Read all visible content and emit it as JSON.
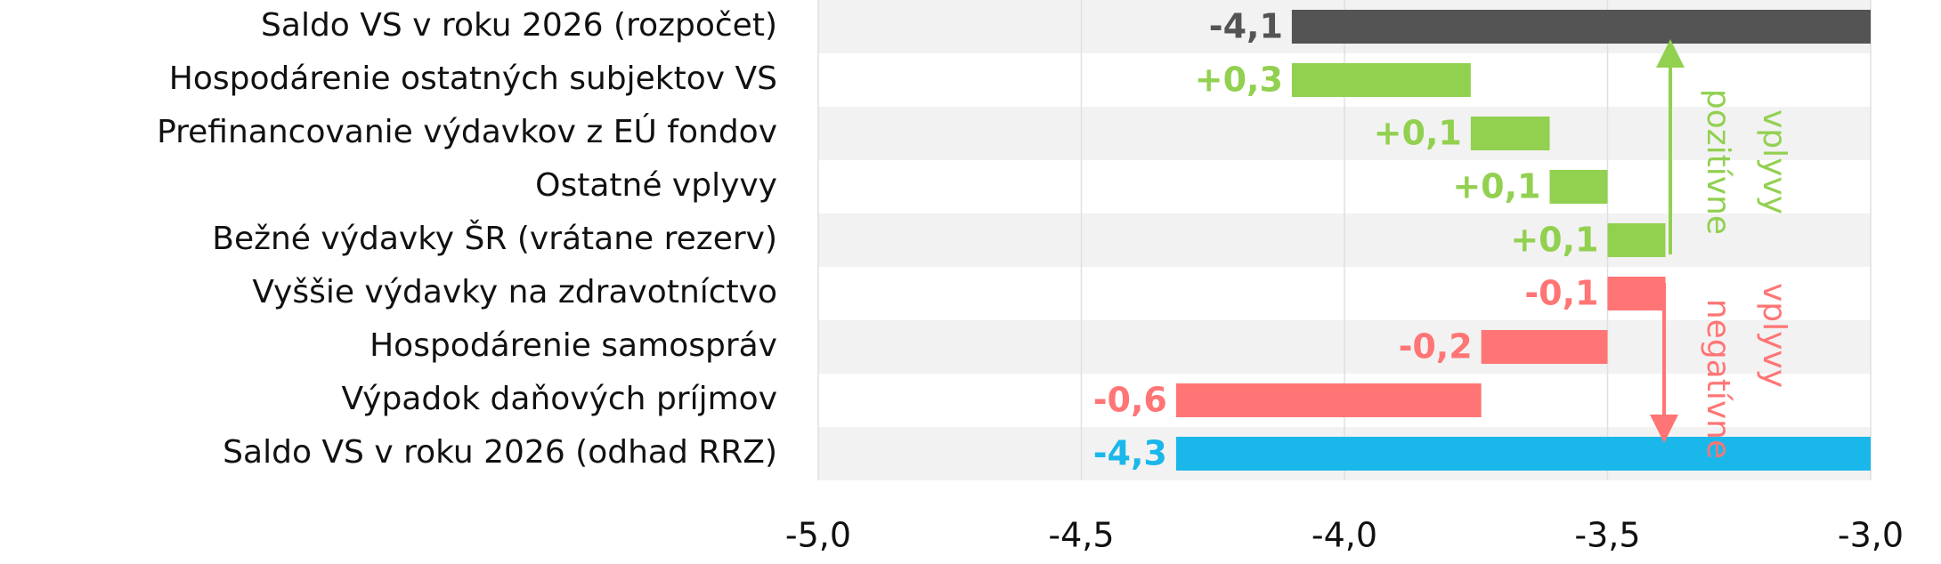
{
  "chart_data": {
    "type": "waterfall",
    "orientation": "horizontal",
    "categories": [
      "Saldo VS v roku 2026 (rozpočet)",
      "Hospodárenie ostatných subjektov VS",
      "Prefinancovanie výdavkov z EÚ fondov",
      "Ostatné vplyvy",
      "Bežné výdavky ŠR (vrátane rezerv)",
      "Vyššie výdavky na zdravotníctvo",
      "Hospodárenie samospráv",
      "Výpadok daňových príjmov",
      "Saldo VS v roku 2026 (odhad RRZ)"
    ],
    "measure": [
      "total",
      "relative",
      "relative",
      "relative",
      "relative",
      "relative",
      "relative",
      "relative",
      "total"
    ],
    "values": [
      -4.1,
      0.34,
      0.15,
      0.11,
      0.11,
      -0.11,
      -0.24,
      -0.58,
      -4.32
    ],
    "value_labels": [
      "-4,1",
      "+0,3",
      "+0,1",
      "+0,1",
      "+0,1",
      "-0,1",
      "-0,2",
      "-0,6",
      "-4,3"
    ],
    "colors": [
      "#545454",
      "#92d050",
      "#92d050",
      "#92d050",
      "#92d050",
      "#ff7575",
      "#ff7575",
      "#ff7575",
      "#1ab7ea"
    ],
    "xlim": [
      -5,
      -3
    ],
    "xticks": [
      {
        "value": -5,
        "label": "-5,0"
      },
      {
        "value": -4.5,
        "label": "-4,5"
      },
      {
        "value": -4,
        "label": "-4,0"
      },
      {
        "value": -3.5,
        "label": "-3,5"
      },
      {
        "value": -3,
        "label": "-3,0"
      }
    ],
    "grid": true,
    "annotations": [
      {
        "text": [
          "pozitívne",
          "vplyvy"
        ],
        "color": "#92d050"
      },
      {
        "text": [
          "negatívne",
          "vplyvy"
        ],
        "color": "#ff7575"
      }
    ]
  }
}
